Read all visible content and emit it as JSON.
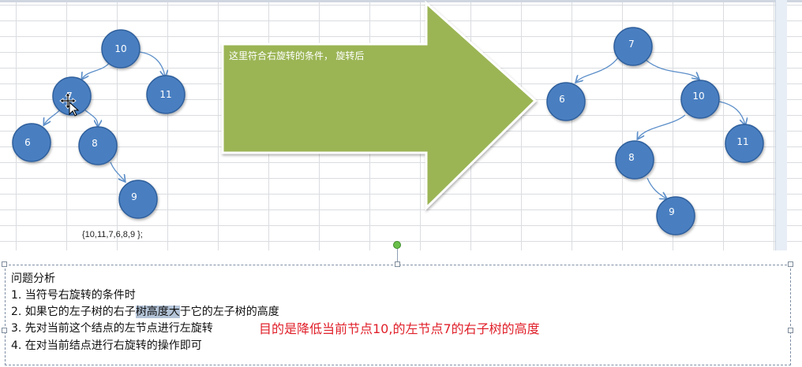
{
  "left_tree": {
    "nodes": [
      "10",
      "7",
      "11",
      "6",
      "8",
      "9"
    ],
    "array_text": "{10,11,7,6,8,9 };"
  },
  "arrow": {
    "caption": "这里符合右旋转的条件， 旋转后",
    "color": "#9bb554"
  },
  "right_tree": {
    "nodes": [
      "7",
      "6",
      "10",
      "8",
      "11",
      "9"
    ]
  },
  "node_color": "#4a7fc1",
  "textbox": {
    "title": "问题分析",
    "line1": "1. 当符号右旋转的条件时",
    "line2_a": "2. 如果它的左子树的右子",
    "line2_sel": "树高度大",
    "line2_b": "于它的左子树的高度",
    "line3": "3. 先对当前这个结点的左节点进行左旋转",
    "line4": "4. 在对当前结点进行右旋转的操作即可",
    "red_note": "目的是降低当前节点10,的左节点7的右子树的高度"
  }
}
